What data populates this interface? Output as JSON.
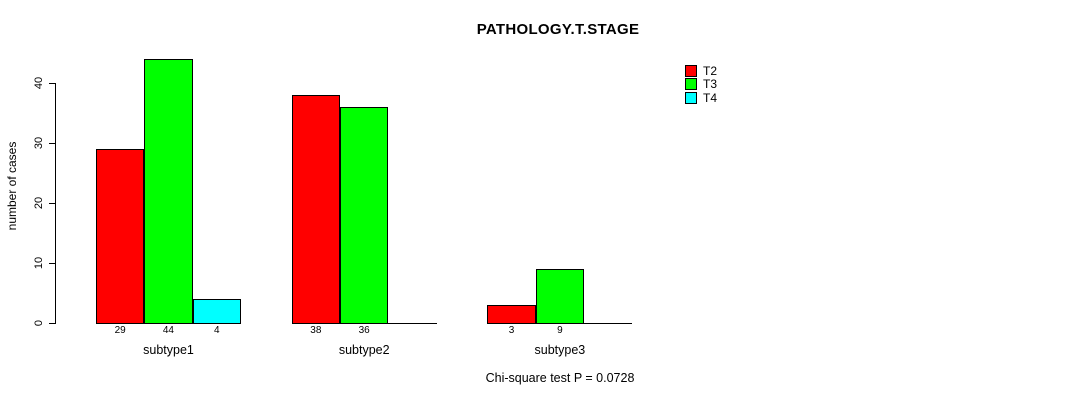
{
  "chart_data": {
    "type": "bar",
    "title": "PATHOLOGY.T.STAGE",
    "ylabel": "number of cases",
    "xlabel": "",
    "categories": [
      "subtype1",
      "subtype2",
      "subtype3"
    ],
    "series": [
      {
        "name": "T2",
        "color": "#ff0000",
        "values": [
          29,
          38,
          3
        ]
      },
      {
        "name": "T3",
        "color": "#00ff00",
        "values": [
          44,
          36,
          9
        ]
      },
      {
        "name": "T4",
        "color": "#00ffff",
        "values": [
          4,
          null,
          null
        ]
      }
    ],
    "yticks": [
      0,
      10,
      20,
      30,
      40
    ],
    "ylim": [
      0,
      44
    ],
    "grid": false,
    "legend_position": "right-top-outside",
    "bar_value_labels_shown": true,
    "annotation": "Chi-square test P = 0.0728"
  }
}
